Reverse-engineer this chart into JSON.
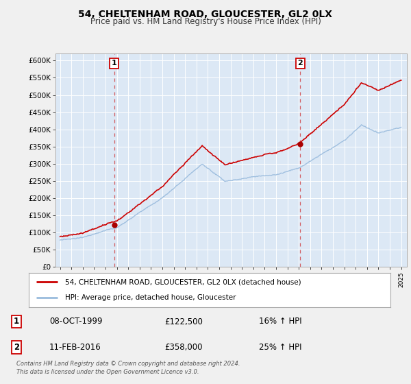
{
  "title": "54, CHELTENHAM ROAD, GLOUCESTER, GL2 0LX",
  "subtitle": "Price paid vs. HM Land Registry's House Price Index (HPI)",
  "fig_bg_color": "#f0f0f0",
  "plot_bg_color": "#dce8f5",
  "grid_color": "#ffffff",
  "red_line_color": "#cc0000",
  "blue_line_color": "#99bbdd",
  "sale1_year": 1999.77,
  "sale1_price": 122500,
  "sale2_year": 2016.12,
  "sale2_price": 358000,
  "yticks": [
    0,
    50000,
    100000,
    150000,
    200000,
    250000,
    300000,
    350000,
    400000,
    450000,
    500000,
    550000,
    600000
  ],
  "legend_label1": "54, CHELTENHAM ROAD, GLOUCESTER, GL2 0LX (detached house)",
  "legend_label2": "HPI: Average price, detached house, Gloucester",
  "annotation1_label": "1",
  "annotation1_date": "08-OCT-1999",
  "annotation1_price": "£122,500",
  "annotation1_hpi": "16% ↑ HPI",
  "annotation2_label": "2",
  "annotation2_date": "11-FEB-2016",
  "annotation2_price": "£358,000",
  "annotation2_hpi": "25% ↑ HPI",
  "footer": "Contains HM Land Registry data © Crown copyright and database right 2024.\nThis data is licensed under the Open Government Licence v3.0.",
  "xmin": 1994.6,
  "xmax": 2025.5,
  "ymin": 0,
  "ymax": 620000,
  "hpi_seed": 12345,
  "hpi_base": 78000,
  "hpi_noise_scale": 1200,
  "red_noise_scale": 1500,
  "red_scale_factor": 1.16
}
